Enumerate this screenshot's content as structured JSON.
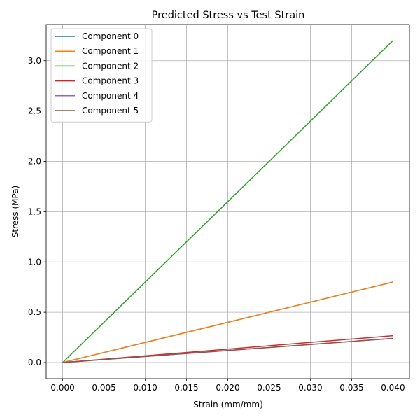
{
  "chart_data": {
    "type": "line",
    "title": "Predicted Stress vs Test Strain",
    "xlabel": "Strain (mm/mm)",
    "ylabel": "Stress (MPa)",
    "xlim": [
      -0.002,
      0.042
    ],
    "ylim": [
      -0.16,
      3.36
    ],
    "grid": true,
    "legend_position": "upper-left",
    "x_ticks": [
      0.0,
      0.005,
      0.01,
      0.015,
      0.02,
      0.025,
      0.03,
      0.035,
      0.04
    ],
    "x_tick_labels": [
      "0.000",
      "0.005",
      "0.010",
      "0.015",
      "0.020",
      "0.025",
      "0.030",
      "0.035",
      "0.040"
    ],
    "y_ticks": [
      0.0,
      0.5,
      1.0,
      1.5,
      2.0,
      2.5,
      3.0
    ],
    "y_tick_labels": [
      "0.0",
      "0.5",
      "1.0",
      "1.5",
      "2.0",
      "2.5",
      "3.0"
    ],
    "x": [
      0.0,
      0.04
    ],
    "series": [
      {
        "name": "Component 0",
        "color": "#1f77b4",
        "values": [
          0.0,
          0.8
        ]
      },
      {
        "name": "Component 1",
        "color": "#ff7f0e",
        "values": [
          0.0,
          0.8
        ]
      },
      {
        "name": "Component 2",
        "color": "#2ca02c",
        "values": [
          0.0,
          3.2
        ]
      },
      {
        "name": "Component 3",
        "color": "#d62728",
        "values": [
          0.0,
          0.267
        ]
      },
      {
        "name": "Component 4",
        "color": "#9467bd",
        "values": [
          0.0,
          0.24
        ]
      },
      {
        "name": "Component 5",
        "color": "#8c564b",
        "values": [
          0.0,
          0.24
        ]
      }
    ]
  }
}
